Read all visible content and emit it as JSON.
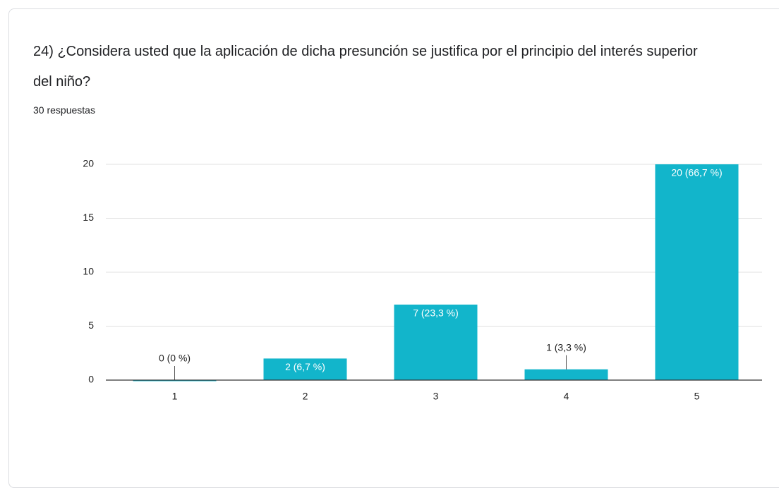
{
  "chart_data": {
    "type": "bar",
    "title": "24) ¿Considera usted que la aplicación de dicha presunción se justifica por el principio del interés superior del niño?",
    "subtitle": "30 respuestas",
    "categories": [
      "1",
      "2",
      "3",
      "4",
      "5"
    ],
    "values": [
      0,
      2,
      7,
      1,
      20
    ],
    "value_labels": [
      "0 (0 %)",
      "2 (6,7 %)",
      "7 (23,3 %)",
      "1 (3,3 %)",
      "20 (66,7 %)"
    ],
    "color": "#12b5cb",
    "ylim": [
      0,
      20
    ],
    "yticks": [
      0,
      5,
      10,
      15,
      20
    ],
    "grid": true
  }
}
